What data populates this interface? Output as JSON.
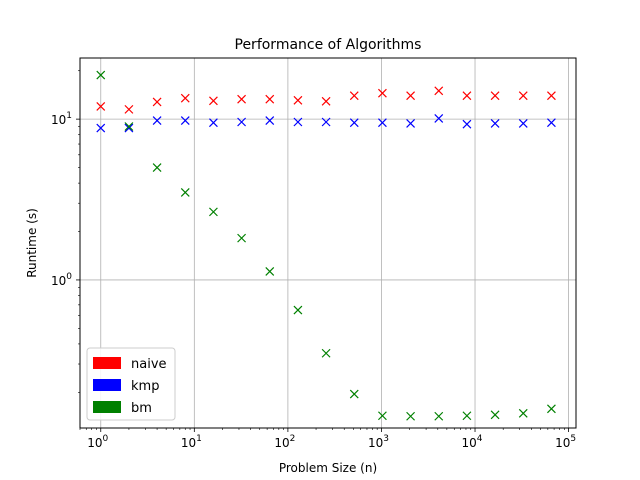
{
  "chart_data": {
    "type": "scatter",
    "title": "Performance of Algorithms",
    "xlabel": "Problem Size (n)",
    "ylabel": "Runtime (s)",
    "x_scale": "log",
    "y_scale": "log",
    "xlim": [
      0.6,
      120000
    ],
    "ylim": [
      0.12,
      24
    ],
    "grid": true,
    "legend_position": "lower-left",
    "marker": "x",
    "x_ticks": [
      {
        "value": 1,
        "exp": "0"
      },
      {
        "value": 10,
        "exp": "1"
      },
      {
        "value": 100,
        "exp": "2"
      },
      {
        "value": 1000,
        "exp": "3"
      },
      {
        "value": 10000,
        "exp": "4"
      },
      {
        "value": 100000,
        "exp": "5"
      }
    ],
    "y_ticks": [
      {
        "value": 1,
        "exp": "0"
      },
      {
        "value": 10,
        "exp": "1"
      }
    ],
    "x": [
      1,
      2,
      4,
      8,
      16,
      32,
      64,
      128,
      256,
      512,
      1024,
      2048,
      4096,
      8192,
      16384,
      32768,
      65536
    ],
    "series": [
      {
        "name": "naive",
        "color": "#ff0000",
        "values": [
          12.0,
          11.5,
          12.8,
          13.5,
          13.0,
          13.3,
          13.3,
          13.1,
          12.9,
          14.0,
          14.5,
          14.0,
          15.0,
          14.0,
          14.0,
          14.0,
          14.0
        ]
      },
      {
        "name": "kmp",
        "color": "#0000ff",
        "values": [
          8.8,
          8.8,
          9.8,
          9.8,
          9.5,
          9.6,
          9.8,
          9.6,
          9.6,
          9.5,
          9.5,
          9.4,
          10.1,
          9.3,
          9.4,
          9.4,
          9.5
        ]
      },
      {
        "name": "bm",
        "color": "#008000",
        "values": [
          18.8,
          9.0,
          5.0,
          3.5,
          2.65,
          1.82,
          1.13,
          0.65,
          0.35,
          0.195,
          0.143,
          0.142,
          0.142,
          0.143,
          0.145,
          0.148,
          0.158
        ]
      }
    ]
  }
}
